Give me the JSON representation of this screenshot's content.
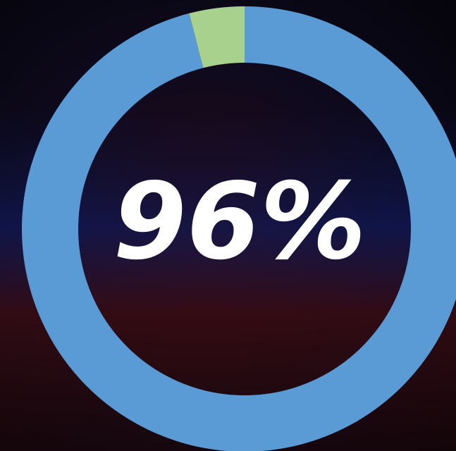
{
  "chart_data": {
    "type": "donut",
    "values": [
      96,
      4
    ],
    "colors": [
      "#5b9bd5",
      "#a9d18e"
    ],
    "center_label": "96%"
  }
}
